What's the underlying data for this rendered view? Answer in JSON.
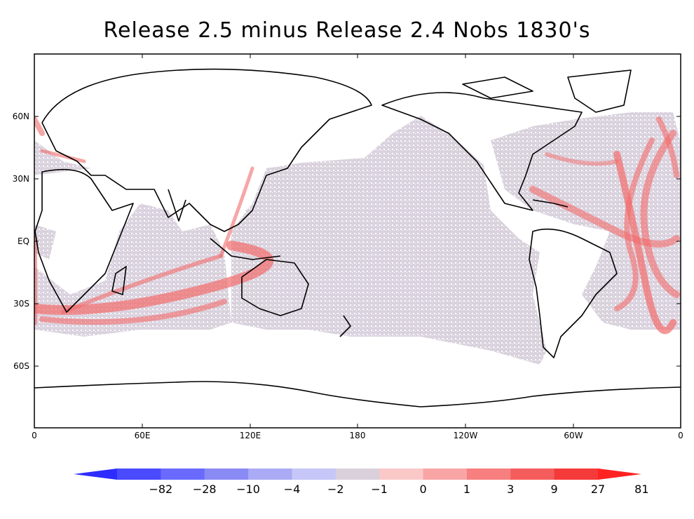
{
  "title": "Release 2.5 minus Release 2.4  Nobs 1830's",
  "lat_ticks": [
    "60N",
    "30N",
    "EQ",
    "30S",
    "60S"
  ],
  "lon_ticks": [
    "0",
    "60E",
    "120E",
    "180",
    "120W",
    "60W",
    "0"
  ],
  "colorbar": {
    "labels": [
      "-82",
      "-28",
      "-10",
      "-4",
      "-2",
      "-1",
      "0",
      "1",
      "3",
      "9",
      "27",
      "81"
    ],
    "colors": [
      "#2d2dff",
      "#4a4aff",
      "#6a6aff",
      "#8a8af5",
      "#aaaaf5",
      "#c6c6f8",
      "#d9d0dc",
      "#fbc8c8",
      "#f9a5a5",
      "#f77f7f",
      "#f55c5c",
      "#f53a3a",
      "#ff2222"
    ]
  },
  "colors": {
    "ocean_zero": "#d8d0dc",
    "shipping_lane": "#f26b6b",
    "coastline": "#000000"
  }
}
